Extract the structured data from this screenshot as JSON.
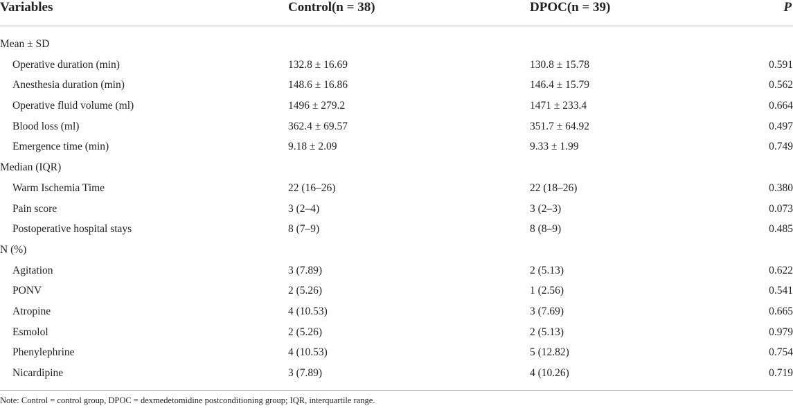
{
  "header": {
    "variables": "Variables",
    "control": "Control(n = 38)",
    "dpoc": "DPOC(n = 39)",
    "p": "P"
  },
  "rows": [
    {
      "type": "section",
      "label": "Mean ± SD"
    },
    {
      "type": "data",
      "label": "Operative duration (min)",
      "control": "132.8 ± 16.69",
      "dpoc": "130.8 ± 15.78",
      "p": "0.591"
    },
    {
      "type": "data",
      "label": "Anesthesia duration (min)",
      "control": "148.6 ± 16.86",
      "dpoc": "146.4 ± 15.79",
      "p": "0.562"
    },
    {
      "type": "data",
      "label": "Operative fluid volume (ml)",
      "control": "1496 ± 279.2",
      "dpoc": "1471 ± 233.4",
      "p": "0.664"
    },
    {
      "type": "data",
      "label": "Blood loss (ml)",
      "control": "362.4 ± 69.57",
      "dpoc": "351.7 ± 64.92",
      "p": "0.497"
    },
    {
      "type": "data",
      "label": "Emergence time (min)",
      "control": "9.18 ± 2.09",
      "dpoc": "9.33 ± 1.99",
      "p": "0.749"
    },
    {
      "type": "section",
      "label": "Median (IQR)"
    },
    {
      "type": "data",
      "label": "Warm Ischemia Time",
      "control": "22 (16–26)",
      "dpoc": "22 (18–26)",
      "p": "0.380"
    },
    {
      "type": "data",
      "label": "Pain score",
      "control": "3 (2–4)",
      "dpoc": "3 (2–3)",
      "p": "0.073"
    },
    {
      "type": "data",
      "label": "Postoperative hospital stays",
      "control": "8 (7–9)",
      "dpoc": "8 (8–9)",
      "p": "0.485"
    },
    {
      "type": "section",
      "label": "N (%)"
    },
    {
      "type": "data",
      "label": "Agitation",
      "control": "3 (7.89)",
      "dpoc": "2 (5.13)",
      "p": "0.622"
    },
    {
      "type": "data",
      "label": "PONV",
      "control": "2 (5.26)",
      "dpoc": "1 (2.56)",
      "p": "0.541"
    },
    {
      "type": "data",
      "label": "Atropine",
      "control": "4 (10.53)",
      "dpoc": "3 (7.69)",
      "p": "0.665"
    },
    {
      "type": "data",
      "label": "Esmolol",
      "control": "2 (5.26)",
      "dpoc": "2 (5.13)",
      "p": "0.979"
    },
    {
      "type": "data",
      "label": "Phenylephrine",
      "control": "4 (10.53)",
      "dpoc": "5 (12.82)",
      "p": "0.754"
    },
    {
      "type": "data",
      "label": "Nicardipine",
      "control": "3 (7.89)",
      "dpoc": "4 (10.26)",
      "p": "0.719"
    }
  ],
  "note": "Note: Control = control group, DPOC = dexmedetomidine postconditioning group; IQR, interquartile range."
}
